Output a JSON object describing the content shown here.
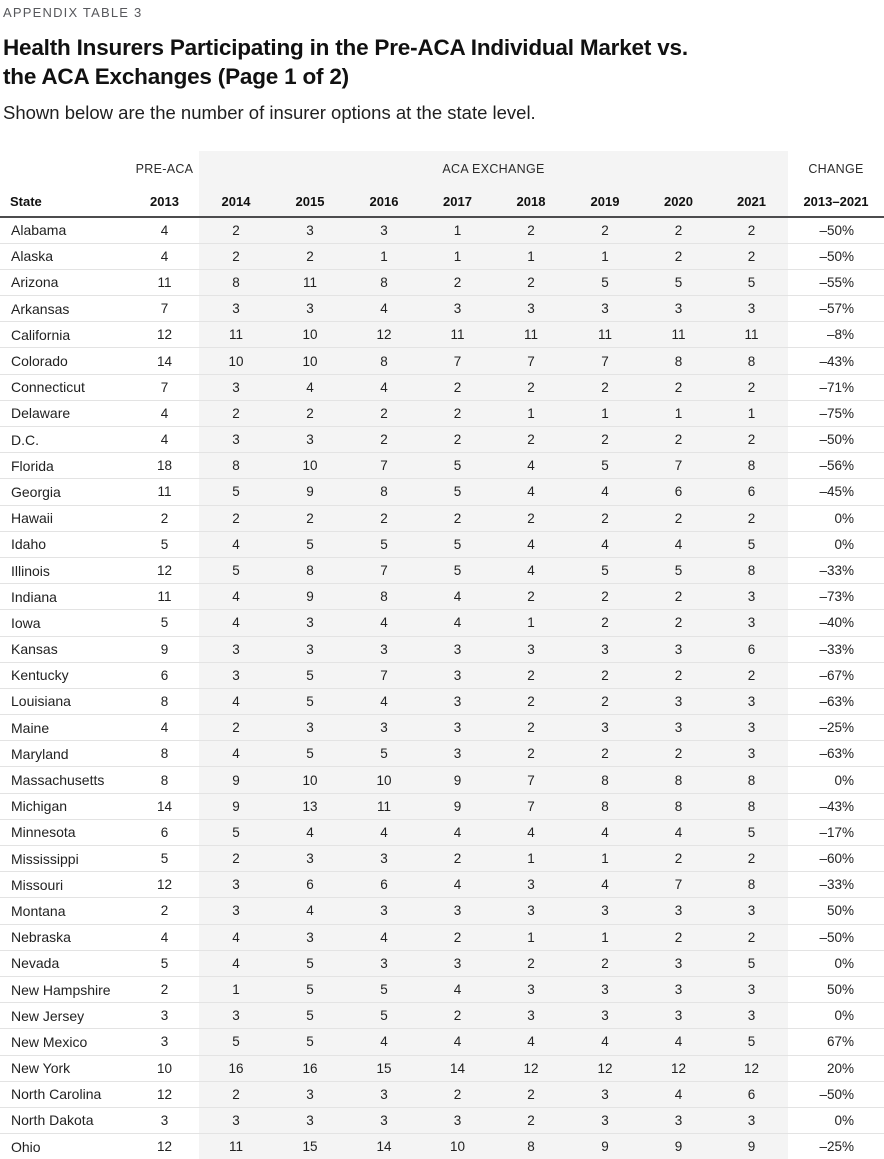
{
  "eyebrow": "APPENDIX TABLE 3",
  "title_line1": "Health Insurers Participating in the Pre-ACA Individual Market vs.",
  "title_line2": "the ACA Exchanges (Page 1 of 2)",
  "subtitle": "Shown below are the number of insurer options at the state level.",
  "table": {
    "group_headers": {
      "pre_aca": "PRE-ACA",
      "aca_exchange": "ACA EXCHANGE",
      "change": "CHANGE"
    },
    "columns": [
      "State",
      "2013",
      "2014",
      "2015",
      "2016",
      "2017",
      "2018",
      "2019",
      "2020",
      "2021",
      "2013–2021"
    ],
    "band_color": "#f4f4f4",
    "rows": [
      {
        "state": "Alabama",
        "pre_aca": 4,
        "years": [
          2,
          3,
          3,
          1,
          2,
          2,
          2,
          2
        ],
        "change": "–50%"
      },
      {
        "state": "Alaska",
        "pre_aca": 4,
        "years": [
          2,
          2,
          1,
          1,
          1,
          1,
          2,
          2
        ],
        "change": "–50%"
      },
      {
        "state": "Arizona",
        "pre_aca": 11,
        "years": [
          8,
          11,
          8,
          2,
          2,
          5,
          5,
          5
        ],
        "change": "–55%"
      },
      {
        "state": "Arkansas",
        "pre_aca": 7,
        "years": [
          3,
          3,
          4,
          3,
          3,
          3,
          3,
          3
        ],
        "change": "–57%"
      },
      {
        "state": "California",
        "pre_aca": 12,
        "years": [
          11,
          10,
          12,
          11,
          11,
          11,
          11,
          11
        ],
        "change": "–8%"
      },
      {
        "state": "Colorado",
        "pre_aca": 14,
        "years": [
          10,
          10,
          8,
          7,
          7,
          7,
          8,
          8
        ],
        "change": "–43%"
      },
      {
        "state": "Connecticut",
        "pre_aca": 7,
        "years": [
          3,
          4,
          4,
          2,
          2,
          2,
          2,
          2
        ],
        "change": "–71%"
      },
      {
        "state": "Delaware",
        "pre_aca": 4,
        "years": [
          2,
          2,
          2,
          2,
          1,
          1,
          1,
          1
        ],
        "change": "–75%"
      },
      {
        "state": "D.C.",
        "pre_aca": 4,
        "years": [
          3,
          3,
          2,
          2,
          2,
          2,
          2,
          2
        ],
        "change": "–50%"
      },
      {
        "state": "Florida",
        "pre_aca": 18,
        "years": [
          8,
          10,
          7,
          5,
          4,
          5,
          7,
          8
        ],
        "change": "–56%"
      },
      {
        "state": "Georgia",
        "pre_aca": 11,
        "years": [
          5,
          9,
          8,
          5,
          4,
          4,
          6,
          6
        ],
        "change": "–45%"
      },
      {
        "state": "Hawaii",
        "pre_aca": 2,
        "years": [
          2,
          2,
          2,
          2,
          2,
          2,
          2,
          2
        ],
        "change": "0%"
      },
      {
        "state": "Idaho",
        "pre_aca": 5,
        "years": [
          4,
          5,
          5,
          5,
          4,
          4,
          4,
          5
        ],
        "change": "0%"
      },
      {
        "state": "Illinois",
        "pre_aca": 12,
        "years": [
          5,
          8,
          7,
          5,
          4,
          5,
          5,
          8
        ],
        "change": "–33%"
      },
      {
        "state": "Indiana",
        "pre_aca": 11,
        "years": [
          4,
          9,
          8,
          4,
          2,
          2,
          2,
          3
        ],
        "change": "–73%"
      },
      {
        "state": "Iowa",
        "pre_aca": 5,
        "years": [
          4,
          3,
          4,
          4,
          1,
          2,
          2,
          3
        ],
        "change": "–40%"
      },
      {
        "state": "Kansas",
        "pre_aca": 9,
        "years": [
          3,
          3,
          3,
          3,
          3,
          3,
          3,
          6
        ],
        "change": "–33%"
      },
      {
        "state": "Kentucky",
        "pre_aca": 6,
        "years": [
          3,
          5,
          7,
          3,
          2,
          2,
          2,
          2
        ],
        "change": "–67%"
      },
      {
        "state": "Louisiana",
        "pre_aca": 8,
        "years": [
          4,
          5,
          4,
          3,
          2,
          2,
          3,
          3
        ],
        "change": "–63%"
      },
      {
        "state": "Maine",
        "pre_aca": 4,
        "years": [
          2,
          3,
          3,
          3,
          2,
          3,
          3,
          3
        ],
        "change": "–25%"
      },
      {
        "state": "Maryland",
        "pre_aca": 8,
        "years": [
          4,
          5,
          5,
          3,
          2,
          2,
          2,
          3
        ],
        "change": "–63%"
      },
      {
        "state": "Massachusetts",
        "pre_aca": 8,
        "years": [
          9,
          10,
          10,
          9,
          7,
          8,
          8,
          8
        ],
        "change": "0%"
      },
      {
        "state": "Michigan",
        "pre_aca": 14,
        "years": [
          9,
          13,
          11,
          9,
          7,
          8,
          8,
          8
        ],
        "change": "–43%"
      },
      {
        "state": "Minnesota",
        "pre_aca": 6,
        "years": [
          5,
          4,
          4,
          4,
          4,
          4,
          4,
          5
        ],
        "change": "–17%"
      },
      {
        "state": "Mississippi",
        "pre_aca": 5,
        "years": [
          2,
          3,
          3,
          2,
          1,
          1,
          2,
          2
        ],
        "change": "–60%"
      },
      {
        "state": "Missouri",
        "pre_aca": 12,
        "years": [
          3,
          6,
          6,
          4,
          3,
          4,
          7,
          8
        ],
        "change": "–33%"
      },
      {
        "state": "Montana",
        "pre_aca": 2,
        "years": [
          3,
          4,
          3,
          3,
          3,
          3,
          3,
          3
        ],
        "change": "50%"
      },
      {
        "state": "Nebraska",
        "pre_aca": 4,
        "years": [
          4,
          3,
          4,
          2,
          1,
          1,
          2,
          2
        ],
        "change": "–50%"
      },
      {
        "state": "Nevada",
        "pre_aca": 5,
        "years": [
          4,
          5,
          3,
          3,
          2,
          2,
          3,
          5
        ],
        "change": "0%"
      },
      {
        "state": "New Hampshire",
        "pre_aca": 2,
        "years": [
          1,
          5,
          5,
          4,
          3,
          3,
          3,
          3
        ],
        "change": "50%"
      },
      {
        "state": "New Jersey",
        "pre_aca": 3,
        "years": [
          3,
          5,
          5,
          2,
          3,
          3,
          3,
          3
        ],
        "change": "0%"
      },
      {
        "state": "New Mexico",
        "pre_aca": 3,
        "years": [
          5,
          5,
          4,
          4,
          4,
          4,
          4,
          5
        ],
        "change": "67%"
      },
      {
        "state": "New York",
        "pre_aca": 10,
        "years": [
          16,
          16,
          15,
          14,
          12,
          12,
          12,
          12
        ],
        "change": "20%"
      },
      {
        "state": "North Carolina",
        "pre_aca": 12,
        "years": [
          2,
          3,
          3,
          2,
          2,
          3,
          4,
          6
        ],
        "change": "–50%"
      },
      {
        "state": "North Dakota",
        "pre_aca": 3,
        "years": [
          3,
          3,
          3,
          3,
          2,
          3,
          3,
          3
        ],
        "change": "0%"
      },
      {
        "state": "Ohio",
        "pre_aca": 12,
        "years": [
          11,
          15,
          14,
          10,
          8,
          9,
          9,
          9
        ],
        "change": "–25%"
      }
    ]
  }
}
